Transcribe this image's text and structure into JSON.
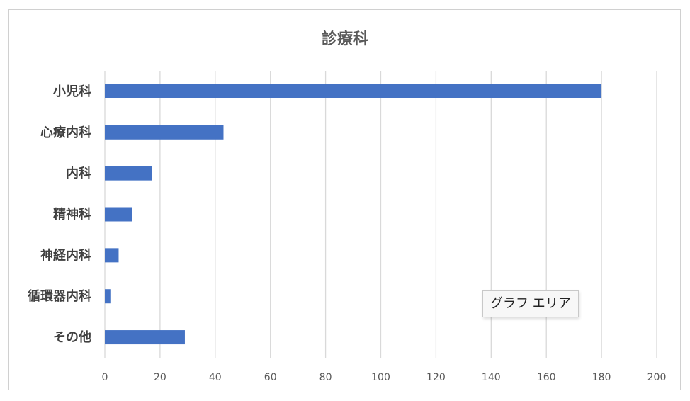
{
  "chart_data": {
    "type": "bar",
    "orientation": "horizontal",
    "title": "診療科",
    "categories": [
      "小児科",
      "心療内科",
      "内科",
      "精神科",
      "神経内科",
      "循環器内科",
      "その他"
    ],
    "values": [
      180,
      43,
      17,
      10,
      5,
      2,
      29
    ],
    "xlim": [
      0,
      200
    ],
    "xticks": [
      0,
      20,
      40,
      60,
      80,
      100,
      120,
      140,
      160,
      180,
      200
    ],
    "grid": true,
    "legend": "none",
    "bar_color": "#4472C4"
  },
  "tooltip": {
    "label": "グラフ エリア"
  }
}
